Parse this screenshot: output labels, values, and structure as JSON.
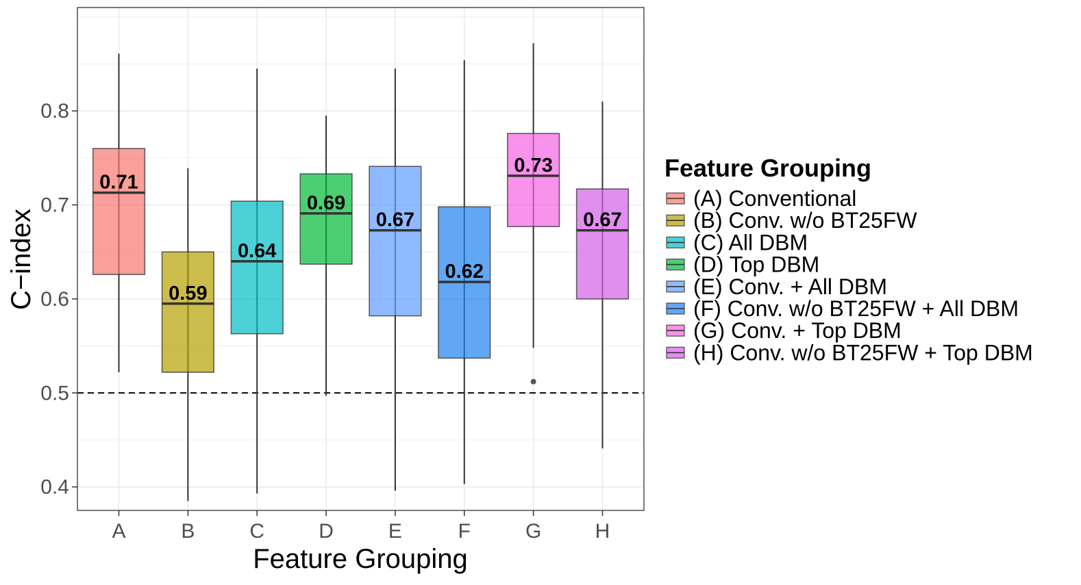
{
  "chart_data": {
    "type": "box",
    "title": "",
    "xlabel": "Feature Grouping",
    "ylabel": "C−index",
    "ylim": [
      0.375,
      0.91
    ],
    "yticks": [
      0.4,
      0.5,
      0.6,
      0.7,
      0.8
    ],
    "ytick_labels": [
      "0.4",
      "0.5",
      "0.6",
      "0.7",
      "0.8"
    ],
    "reference_line": {
      "y": 0.5,
      "style": "dashed"
    },
    "grid": true,
    "legend": {
      "title": "Feature Grouping",
      "position": "right"
    },
    "categories": [
      "A",
      "B",
      "C",
      "D",
      "E",
      "F",
      "G",
      "H"
    ],
    "series": [
      {
        "category": "A",
        "name": "(A) Conventional",
        "color": "#F8766D",
        "whisker_low": 0.522,
        "q1": 0.626,
        "median": 0.713,
        "q3": 0.76,
        "whisker_high": 0.861,
        "outliers": [],
        "median_label": "0.71"
      },
      {
        "category": "B",
        "name": "(B) Conv. w/o BT25FW",
        "color": "#B79F00",
        "whisker_low": 0.385,
        "q1": 0.522,
        "median": 0.595,
        "q3": 0.65,
        "whisker_high": 0.739,
        "outliers": [],
        "median_label": "0.59"
      },
      {
        "category": "C",
        "name": "(C) All DBM",
        "color": "#00BFC4",
        "whisker_low": 0.393,
        "q1": 0.563,
        "median": 0.64,
        "q3": 0.704,
        "whisker_high": 0.845,
        "outliers": [],
        "median_label": "0.64"
      },
      {
        "category": "D",
        "name": "(D) Top DBM",
        "color": "#00BA38",
        "whisker_low": 0.497,
        "q1": 0.637,
        "median": 0.691,
        "q3": 0.733,
        "whisker_high": 0.795,
        "outliers": [],
        "median_label": "0.69"
      },
      {
        "category": "E",
        "name": "(E) Conv. + All DBM",
        "color": "#619CFF",
        "whisker_low": 0.396,
        "q1": 0.582,
        "median": 0.673,
        "q3": 0.741,
        "whisker_high": 0.845,
        "outliers": [],
        "median_label": "0.67"
      },
      {
        "category": "F",
        "name": "(F) Conv. w/o BT25FW + All DBM",
        "color": "#1F82EE",
        "whisker_low": 0.403,
        "q1": 0.537,
        "median": 0.618,
        "q3": 0.698,
        "whisker_high": 0.854,
        "outliers": [],
        "median_label": "0.62"
      },
      {
        "category": "G",
        "name": "(G) Conv. + Top DBM",
        "color": "#F564E3",
        "whisker_low": 0.548,
        "q1": 0.677,
        "median": 0.731,
        "q3": 0.776,
        "whisker_high": 0.872,
        "outliers": [
          0.512
        ],
        "median_label": "0.73"
      },
      {
        "category": "H",
        "name": "(H) Conv. w/o BT25FW + Top DBM",
        "color": "#D45FE8",
        "whisker_low": 0.441,
        "q1": 0.6,
        "median": 0.673,
        "q3": 0.717,
        "whisker_high": 0.81,
        "outliers": [],
        "median_label": "0.67"
      }
    ]
  }
}
